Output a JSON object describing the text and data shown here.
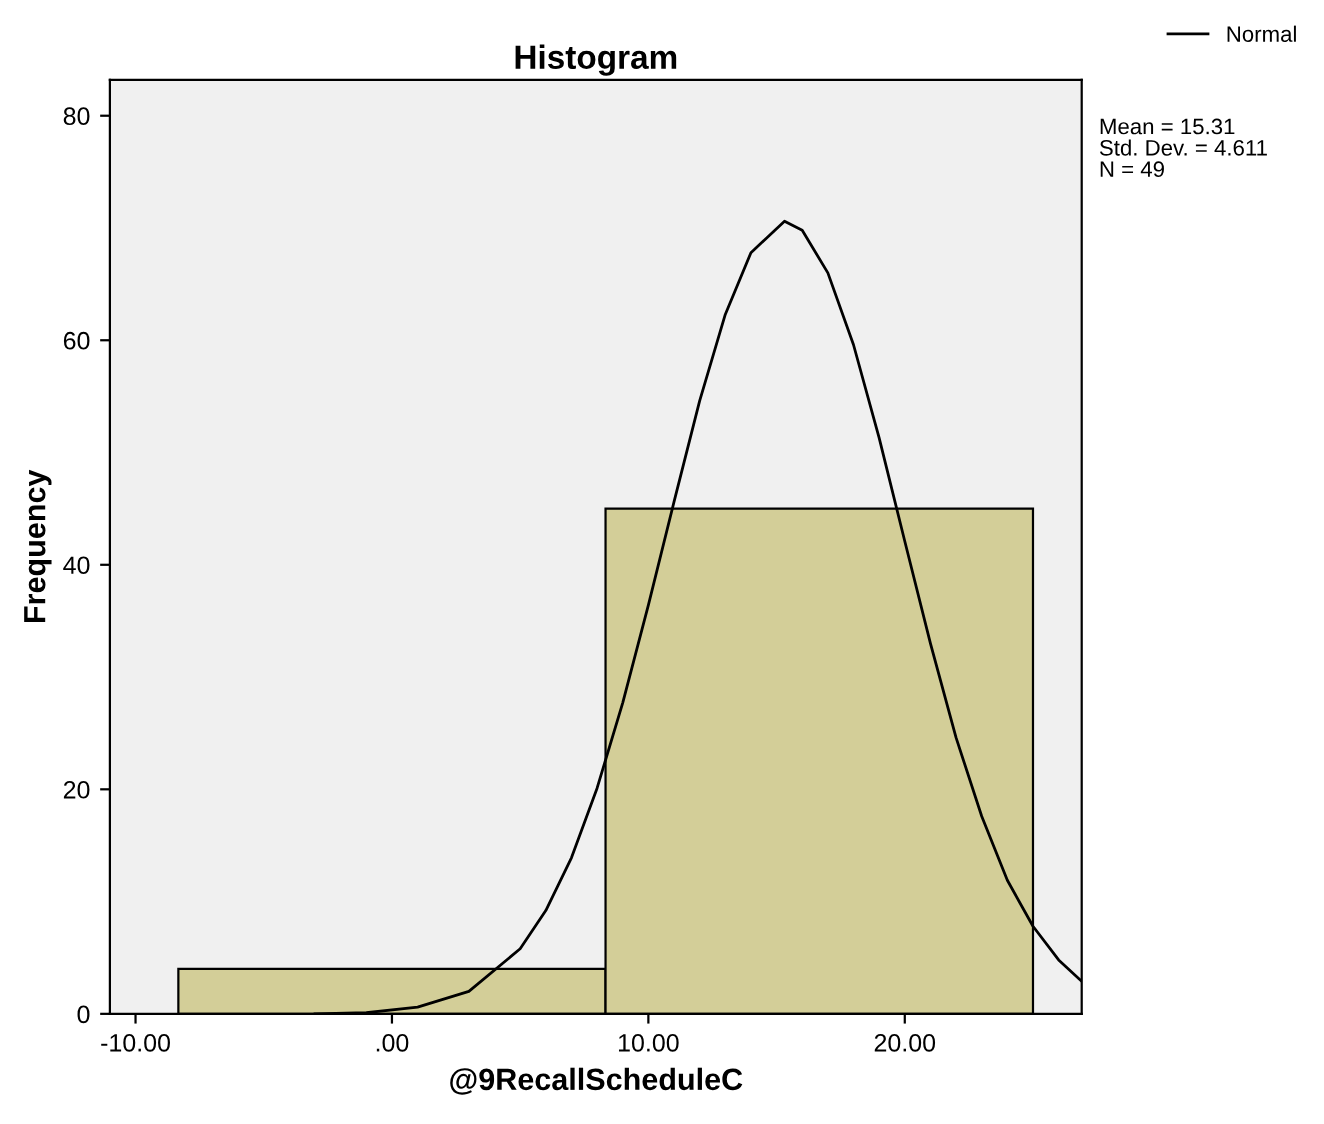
{
  "chart_data": {
    "type": "histogram",
    "title": "Histogram",
    "xlabel": "@9RecallScheduleC",
    "ylabel": "Frequency",
    "xlim": [
      -11,
      26.9
    ],
    "ylim": [
      0,
      83.2
    ],
    "xticks": [
      {
        "value": -10,
        "label": "-10.00"
      },
      {
        "value": 0,
        "label": ".00"
      },
      {
        "value": 10,
        "label": "10.00"
      },
      {
        "value": 20,
        "label": "20.00"
      }
    ],
    "yticks": [
      0,
      20,
      40,
      60,
      80
    ],
    "series": [
      {
        "bins": [
          -8.33,
          8.33,
          25.0
        ],
        "values": [
          4,
          45
        ],
        "color": "#d3ce98"
      },
      {
        "type": "line",
        "name": "Normal",
        "color": "#000000",
        "x": [
          -3,
          -1,
          1,
          3,
          5,
          6,
          7,
          8,
          9,
          10,
          11,
          12,
          13,
          14,
          15.31,
          16,
          17,
          18,
          19,
          20,
          21,
          22,
          23,
          24,
          25,
          26,
          26.9
        ],
        "values": [
          0,
          0.1,
          0.6,
          2.0,
          5.8,
          9.2,
          13.9,
          20.1,
          27.7,
          36.4,
          45.6,
          54.6,
          62.3,
          67.8,
          70.6,
          69.8,
          66.0,
          59.6,
          51.3,
          42.1,
          33.0,
          24.6,
          17.6,
          11.9,
          7.8,
          4.8,
          2.9
        ]
      }
    ],
    "annotations": [
      "Mean = 15.31",
      "Std. Dev. = 4.611",
      "N = 49"
    ],
    "legend": "top right",
    "grid": false
  }
}
